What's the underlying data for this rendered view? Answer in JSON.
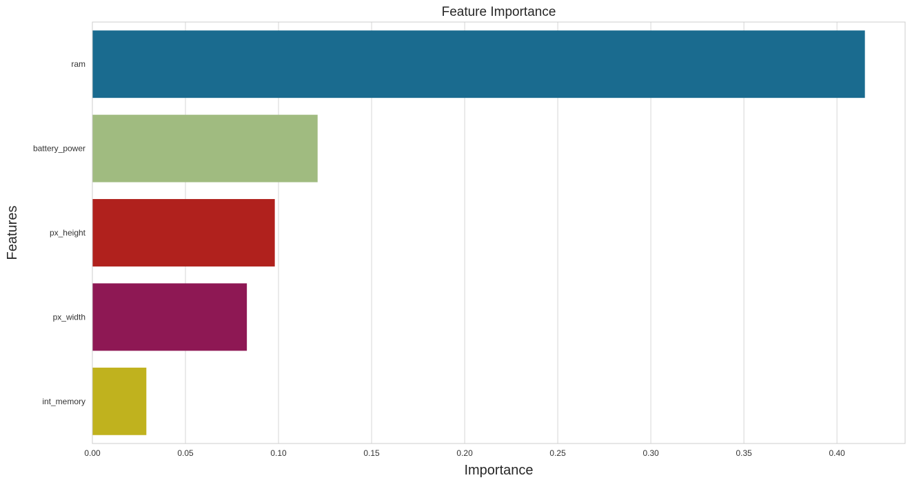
{
  "chart_data": {
    "type": "bar",
    "orientation": "horizontal",
    "title": "Feature Importance",
    "xlabel": "Importance",
    "ylabel": "Features",
    "categories": [
      "ram",
      "battery_power",
      "px_height",
      "px_width",
      "int_memory"
    ],
    "values": [
      0.415,
      0.121,
      0.098,
      0.083,
      0.029
    ],
    "colors": [
      "#1a6b8f",
      "#a0bb80",
      "#b0211d",
      "#8e1854",
      "#c0b21e"
    ],
    "xlim": [
      0,
      0.4366
    ],
    "xticks": [
      0,
      0.05,
      0.1,
      0.15,
      0.2,
      0.25,
      0.3,
      0.35,
      0.4
    ],
    "xtick_labels": [
      "0.00",
      "0.05",
      "0.10",
      "0.15",
      "0.20",
      "0.25",
      "0.30",
      "0.35",
      "0.40"
    ],
    "grid": true,
    "legend": "none"
  }
}
